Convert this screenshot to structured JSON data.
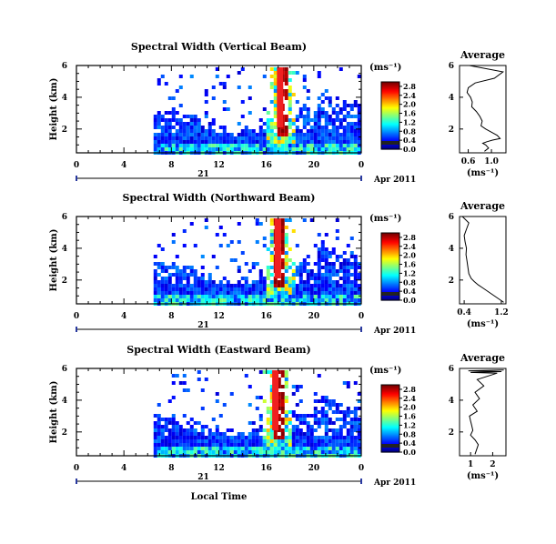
{
  "figure": {
    "xlabel": "Local Time",
    "date_label": "Apr 2011",
    "day_label": "21",
    "unit_label": "(ms⁻¹)",
    "avg_title": "Average",
    "ylabel": "Height (km)"
  },
  "chart_data": [
    {
      "type": "heatmap",
      "title": "Spectral Width (Vertical Beam)",
      "xlabel": "",
      "ylabel": "Height (km)",
      "x_ticks": [
        "0",
        "4",
        "8",
        "12",
        "16",
        "20",
        "0"
      ],
      "xlim": [
        0,
        24
      ],
      "y_ticks": [
        "2",
        "4",
        "6"
      ],
      "ylim": [
        0.5,
        6
      ],
      "colorbar_ticks": [
        "0.0",
        "0.4",
        "0.8",
        "1.2",
        "1.6",
        "2.0",
        "2.4",
        "2.8"
      ],
      "colorbar_range": [
        0,
        3
      ],
      "data_start_hour": 6.5,
      "spike_hour": 17.2
    },
    {
      "type": "heatmap",
      "title": "Spectral Width (Northward Beam)",
      "xlabel": "",
      "ylabel": "Height (km)",
      "x_ticks": [
        "0",
        "4",
        "8",
        "12",
        "16",
        "20",
        "0"
      ],
      "xlim": [
        0,
        24
      ],
      "y_ticks": [
        "2",
        "4",
        "6"
      ],
      "ylim": [
        0.5,
        6
      ],
      "colorbar_ticks": [
        "0.0",
        "0.4",
        "0.8",
        "1.2",
        "1.6",
        "2.0",
        "2.4",
        "2.8"
      ],
      "colorbar_range": [
        0,
        3
      ],
      "data_start_hour": 6.5,
      "spike_hour": 17.0
    },
    {
      "type": "heatmap",
      "title": "Spectral Width (Eastward Beam)",
      "xlabel": "Local Time",
      "ylabel": "Height (km)",
      "x_ticks": [
        "0",
        "4",
        "8",
        "12",
        "16",
        "20",
        "0"
      ],
      "xlim": [
        0,
        24
      ],
      "y_ticks": [
        "2",
        "4",
        "6"
      ],
      "ylim": [
        0.5,
        6
      ],
      "colorbar_ticks": [
        "0.0",
        "0.4",
        "0.8",
        "1.2",
        "1.6",
        "2.0",
        "2.4",
        "2.8"
      ],
      "colorbar_range": [
        0,
        3
      ],
      "data_start_hour": 6.5,
      "spike_hour": 16.8
    },
    {
      "type": "line",
      "title": "Average",
      "xlabel": "(ms⁻¹)",
      "x_ticks": [
        "0.6",
        "1.0"
      ],
      "xlim": [
        0.45,
        1.25
      ],
      "y_ticks": [
        "2",
        "4",
        "6"
      ],
      "ylim": [
        0.5,
        6
      ],
      "x": [
        0.62,
        1.2,
        1.05,
        0.72,
        0.6,
        0.58,
        0.64,
        0.67,
        0.66,
        0.74,
        0.8,
        0.84,
        0.82,
        0.9,
        1.0,
        1.1,
        1.15,
        1.02,
        0.92,
        0.85,
        0.9,
        0.95,
        0.88
      ],
      "y": [
        6.0,
        5.6,
        5.2,
        4.9,
        4.6,
        4.3,
        4.0,
        3.7,
        3.4,
        3.1,
        2.8,
        2.5,
        2.2,
        2.0,
        1.8,
        1.6,
        1.4,
        1.3,
        1.2,
        1.1,
        1.0,
        0.8,
        0.6
      ]
    },
    {
      "type": "line",
      "title": "Average",
      "xlabel": "(ms⁻¹)",
      "x_ticks": [
        "0.4",
        "1.2"
      ],
      "xlim": [
        0.3,
        1.3
      ],
      "y_ticks": [
        "2",
        "4",
        "6"
      ],
      "ylim": [
        0.5,
        6
      ],
      "x": [
        0.36,
        0.5,
        0.45,
        0.4,
        0.42,
        0.45,
        0.44,
        0.46,
        0.48,
        0.5,
        0.55,
        0.62,
        0.7,
        0.8,
        0.9,
        1.0,
        1.1,
        1.2,
        1.25
      ],
      "y": [
        6.0,
        5.6,
        5.2,
        4.8,
        4.4,
        4.0,
        3.6,
        3.2,
        2.8,
        2.4,
        2.1,
        1.9,
        1.7,
        1.5,
        1.3,
        1.1,
        0.9,
        0.7,
        0.6
      ]
    },
    {
      "type": "line",
      "title": "Average",
      "xlabel": "(ms⁻¹)",
      "x_ticks": [
        "1",
        "2"
      ],
      "xlim": [
        0.5,
        2.6
      ],
      "y_ticks": [
        "2",
        "4",
        "6"
      ],
      "ylim": [
        0.5,
        6
      ],
      "x": [
        2.5,
        0.9,
        2.4,
        1.0,
        2.2,
        1.3,
        1.6,
        1.2,
        1.4,
        1.1,
        1.3,
        0.95,
        1.0,
        1.05,
        1.1,
        1.0,
        1.2,
        1.35,
        1.3,
        1.25,
        1.2
      ],
      "y": [
        5.9,
        5.85,
        5.8,
        5.75,
        5.7,
        5.3,
        4.9,
        4.5,
        4.1,
        3.7,
        3.3,
        3.0,
        2.7,
        2.4,
        2.1,
        1.8,
        1.5,
        1.2,
        1.0,
        0.8,
        0.6
      ]
    }
  ]
}
